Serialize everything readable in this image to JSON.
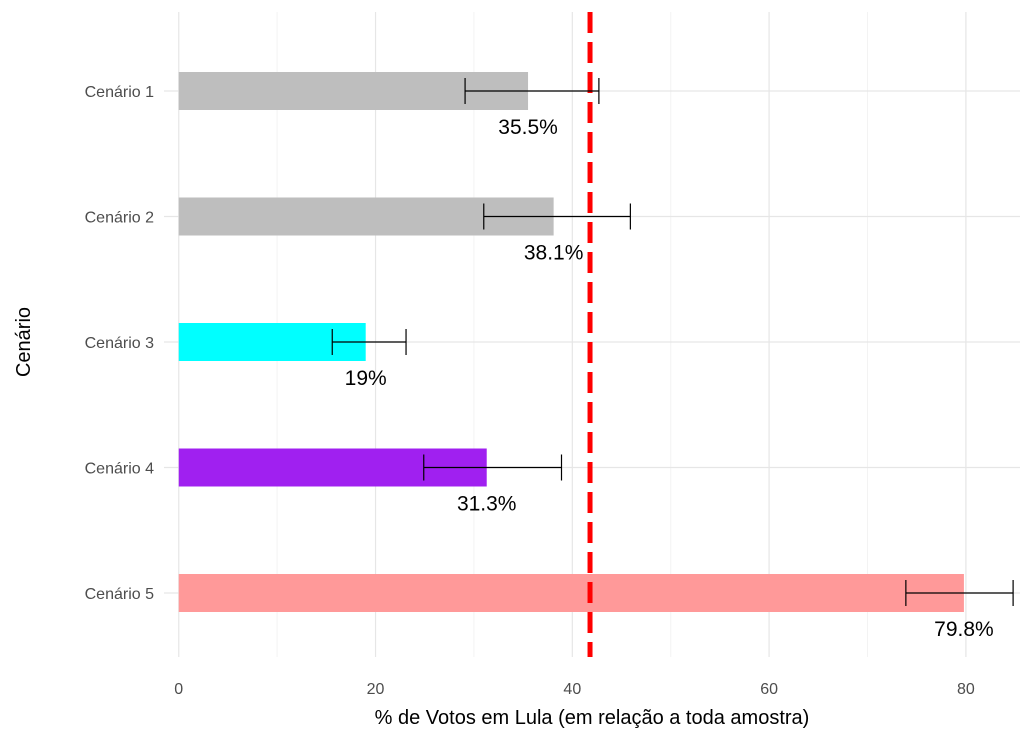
{
  "chart_data": {
    "type": "bar",
    "orientation": "horizontal",
    "categories": [
      "Cenário 1",
      "Cenário 2",
      "Cenário 3",
      "Cenário 4",
      "Cenário 5"
    ],
    "values": [
      35.5,
      38.1,
      19,
      31.3,
      79.8
    ],
    "error_low": [
      29.1,
      31.0,
      15.6,
      24.9,
      73.9
    ],
    "error_high": [
      42.7,
      45.9,
      23.1,
      38.9,
      84.8
    ],
    "data_labels": [
      "35.5%",
      "38.1%",
      "19%",
      "31.3%",
      "79.8%"
    ],
    "colors": [
      "#bebebe",
      "#bebebe",
      "#00ffff",
      "#a020f0",
      "#ff9999"
    ],
    "reference_line": {
      "value": 41.8,
      "color": "#ff0000",
      "style": "dashed"
    },
    "xlabel": "% de Votos em Lula (em relação a toda amostra)",
    "ylabel": "Cenário",
    "xlim": [
      -1.5,
      85.5
    ],
    "xticks": [
      0,
      20,
      40,
      60,
      80
    ],
    "grid": true
  }
}
